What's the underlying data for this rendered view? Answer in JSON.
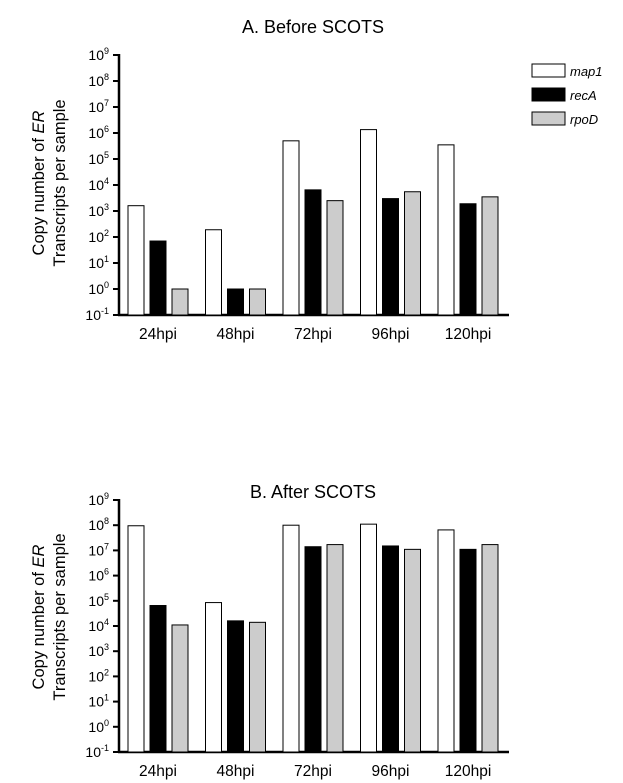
{
  "figure": {
    "legend": [
      {
        "name": "map1",
        "color": "#ffffff"
      },
      {
        "name": "recA",
        "color": "#000000"
      },
      {
        "name": "rpoD",
        "color": "#cccccc"
      }
    ]
  },
  "chart_data": [
    {
      "type": "bar",
      "title": "A. Before SCOTS",
      "ylabel_line1_prefix": "Copy number of ",
      "ylabel_line1_italic": "ER",
      "ylabel_line2": "Transcripts per sample",
      "yscale": "log",
      "ylim": [
        0.1,
        1000000000
      ],
      "ytick_exponents": [
        -1,
        0,
        1,
        2,
        3,
        4,
        5,
        6,
        7,
        8,
        9
      ],
      "categories": [
        "24hpi",
        "48hpi",
        "72hpi",
        "96hpi",
        "120hpi"
      ],
      "series": [
        {
          "name": "map1",
          "values": [
            1600,
            190,
            500000,
            1350000,
            350000
          ]
        },
        {
          "name": "recA",
          "values": [
            70,
            1,
            6500,
            3000,
            1900
          ]
        },
        {
          "name": "rpoD",
          "values": [
            1,
            1,
            2500,
            5500,
            3500
          ]
        }
      ],
      "legend_position": "top-right",
      "grid": false
    },
    {
      "type": "bar",
      "title": "B. After SCOTS",
      "ylabel_line1_prefix": "Copy number of ",
      "ylabel_line1_italic": "ER",
      "ylabel_line2": "Transcripts per sample",
      "yscale": "log",
      "ylim": [
        0.1,
        1000000000
      ],
      "ytick_exponents": [
        -1,
        0,
        1,
        2,
        3,
        4,
        5,
        6,
        7,
        8,
        9
      ],
      "categories": [
        "24hpi",
        "48hpi",
        "72hpi",
        "96hpi",
        "120hpi"
      ],
      "series": [
        {
          "name": "map1",
          "values": [
            95000000,
            85000,
            100000000,
            110000000,
            65000000
          ]
        },
        {
          "name": "recA",
          "values": [
            65000,
            16000,
            14000000,
            15000000,
            11000000
          ]
        },
        {
          "name": "rpoD",
          "values": [
            11000,
            14000,
            17000000,
            11000000,
            17000000
          ]
        }
      ],
      "grid": false
    }
  ]
}
